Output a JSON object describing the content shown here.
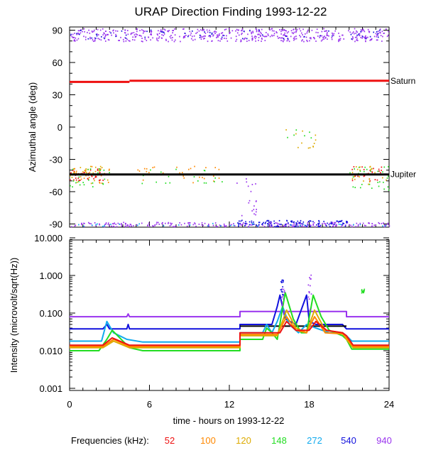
{
  "title": "URAP Direction Finding  1993-12-22",
  "footer": {
    "freq_label": "Frequencies (kHz):",
    "frequencies": [
      {
        "label": "52",
        "color": "#ee1111"
      },
      {
        "label": "100",
        "color": "#ff8800"
      },
      {
        "label": "120",
        "color": "#ddaa00"
      },
      {
        "label": "148",
        "color": "#22dd22"
      },
      {
        "label": "272",
        "color": "#11aaee"
      },
      {
        "label": "540",
        "color": "#1111dd"
      },
      {
        "label": "940",
        "color": "#9933ee"
      }
    ]
  },
  "chart_data": [
    {
      "type": "scatter",
      "ylabel": "Azimuthal angle (deg)",
      "xlim": [
        0,
        24
      ],
      "ylim": [
        -93,
        93
      ],
      "yticks": [
        "90",
        "60",
        "30",
        "0",
        "-30",
        "-60",
        "-90"
      ],
      "reference_lines": [
        {
          "name": "Saturn",
          "color": "#ee1111",
          "segments": [
            [
              0,
              4.5,
              42
            ],
            [
              4.5,
              24,
              43
            ]
          ]
        },
        {
          "name": "Jupiter",
          "color": "#000000",
          "segments": [
            [
              0,
              24,
              -44
            ]
          ]
        }
      ],
      "clusters": [
        {
          "color": "#9933ee",
          "x": [
            0,
            24
          ],
          "y": [
            80,
            92
          ],
          "count": 520
        },
        {
          "color": "#1111dd",
          "x": [
            0,
            24
          ],
          "y": [
            82,
            91
          ],
          "count": 60
        },
        {
          "color": "#9933ee",
          "x": [
            0,
            24
          ],
          "y": [
            -92,
            -88
          ],
          "count": 240
        },
        {
          "color": "#1111dd",
          "x": [
            12.5,
            21
          ],
          "y": [
            -92,
            -86
          ],
          "count": 120
        },
        {
          "color": "#11aaee",
          "x": [
            0,
            24
          ],
          "y": [
            -92,
            -89
          ],
          "count": 30
        },
        {
          "color": "#ee1111",
          "x": [
            0,
            2.5
          ],
          "y": [
            -50,
            -38
          ],
          "count": 40
        },
        {
          "color": "#ff8800",
          "x": [
            0,
            3
          ],
          "y": [
            -52,
            -36
          ],
          "count": 25
        },
        {
          "color": "#ddaa00",
          "x": [
            0,
            3
          ],
          "y": [
            -52,
            -36
          ],
          "count": 25
        },
        {
          "color": "#22dd22",
          "x": [
            0,
            3
          ],
          "y": [
            -55,
            -38
          ],
          "count": 25
        },
        {
          "color": "#ff8800",
          "x": [
            5,
            11.5
          ],
          "y": [
            -52,
            -36
          ],
          "count": 30
        },
        {
          "color": "#22dd22",
          "x": [
            5,
            11.5
          ],
          "y": [
            -52,
            -36
          ],
          "count": 20
        },
        {
          "color": "#ee1111",
          "x": [
            21,
            23.5
          ],
          "y": [
            -50,
            -36
          ],
          "count": 25
        },
        {
          "color": "#22dd22",
          "x": [
            21,
            24
          ],
          "y": [
            -58,
            -36
          ],
          "count": 30
        },
        {
          "color": "#ddaa00",
          "x": [
            21,
            24
          ],
          "y": [
            -55,
            -36
          ],
          "count": 20
        },
        {
          "color": "#9933ee",
          "x": [
            12.5,
            14
          ],
          "y": [
            -92,
            -45
          ],
          "count": 20
        },
        {
          "color": "#ddaa00",
          "x": [
            16,
            18.5
          ],
          "y": [
            -22,
            5
          ],
          "count": 12
        },
        {
          "color": "#22dd22",
          "x": [
            16,
            18.5
          ],
          "y": [
            -10,
            0
          ],
          "count": 6
        }
      ]
    },
    {
      "type": "line",
      "ylabel": "Intensity (microvolt/sqrt(Hz))",
      "xlabel": "time - hours on 1993-12-22",
      "xlim": [
        0,
        24
      ],
      "ylim": [
        0.001,
        10
      ],
      "yscale": "log",
      "xticks": [
        "0",
        "6",
        "12",
        "18",
        "24"
      ],
      "yticks": [
        "10.000",
        "1.000",
        "0.100",
        "0.010",
        "0.001"
      ],
      "series": [
        {
          "color": "#9933ee",
          "x": [
            0,
            4.3,
            4.4,
            4.5,
            12.8,
            12.8,
            20.8,
            20.8,
            24
          ],
          "y": [
            0.08,
            0.08,
            0.095,
            0.08,
            0.08,
            0.11,
            0.11,
            0.08,
            0.08
          ]
        },
        {
          "color": "#1111dd",
          "x": [
            0,
            2.5,
            2.8,
            3,
            4.3,
            4.4,
            4.5,
            12.8,
            12.8,
            15.2,
            15.6,
            15.8,
            16.2,
            17,
            17.8,
            18,
            18.5,
            19.5,
            20.5,
            20.8,
            24
          ],
          "y": [
            0.038,
            0.038,
            0.05,
            0.038,
            0.038,
            0.05,
            0.038,
            0.038,
            0.05,
            0.05,
            0.15,
            0.3,
            0.07,
            0.05,
            0.3,
            0.06,
            0.05,
            0.05,
            0.05,
            0.038,
            0.038
          ]
        },
        {
          "color": "#000000",
          "x": [
            12.8,
            20.8
          ],
          "y": [
            0.045,
            0.045
          ]
        },
        {
          "color": "#11aaee",
          "x": [
            0,
            2.4,
            2.8,
            3.3,
            4.3,
            5.5,
            12.8,
            12.8,
            14.5,
            14.8,
            15.2,
            15.6,
            16,
            16.5,
            17.2,
            17.8,
            18.5,
            19.5,
            20.5,
            20.8,
            21.2,
            24
          ],
          "y": [
            0.018,
            0.018,
            0.06,
            0.03,
            0.02,
            0.017,
            0.017,
            0.03,
            0.03,
            0.05,
            0.03,
            0.06,
            0.15,
            0.05,
            0.03,
            0.05,
            0.04,
            0.03,
            0.03,
            0.025,
            0.018,
            0.018
          ]
        },
        {
          "color": "#22dd22",
          "x": [
            0,
            2.2,
            2.8,
            3.2,
            4.5,
            5.5,
            12.8,
            12.8,
            14.5,
            14.8,
            15.2,
            15.6,
            16.2,
            16.8,
            17.4,
            17.8,
            18.3,
            18.9,
            19.5,
            20.5,
            20.8,
            21.2,
            24
          ],
          "y": [
            0.01,
            0.01,
            0.02,
            0.035,
            0.012,
            0.01,
            0.01,
            0.02,
            0.02,
            0.04,
            0.03,
            0.02,
            0.35,
            0.07,
            0.03,
            0.03,
            0.3,
            0.08,
            0.035,
            0.025,
            0.02,
            0.011,
            0.011
          ]
        },
        {
          "color": "#ddaa00",
          "x": [
            0,
            2.5,
            3.3,
            4.5,
            12.8,
            12.8,
            15.6,
            16.3,
            17,
            17.8,
            18.4,
            19.2,
            20.5,
            20.8,
            21.3,
            24
          ],
          "y": [
            0.012,
            0.012,
            0.018,
            0.012,
            0.012,
            0.025,
            0.025,
            0.12,
            0.04,
            0.03,
            0.12,
            0.035,
            0.03,
            0.02,
            0.012,
            0.012
          ]
        },
        {
          "color": "#ff8800",
          "x": [
            0,
            2.5,
            3.3,
            4.5,
            12.8,
            12.8,
            15.6,
            16.3,
            17,
            17.8,
            18.4,
            19.2,
            20.5,
            20.8,
            21.3,
            24
          ],
          "y": [
            0.013,
            0.013,
            0.02,
            0.013,
            0.013,
            0.027,
            0.027,
            0.08,
            0.035,
            0.03,
            0.08,
            0.03,
            0.028,
            0.022,
            0.013,
            0.013
          ]
        },
        {
          "color": "#ee1111",
          "x": [
            0,
            2.5,
            3.2,
            4.5,
            12.8,
            12.8,
            15.8,
            16.3,
            17,
            18,
            18.5,
            19.3,
            20.5,
            20.8,
            21.3,
            24
          ],
          "y": [
            0.014,
            0.014,
            0.022,
            0.014,
            0.014,
            0.03,
            0.03,
            0.06,
            0.035,
            0.035,
            0.06,
            0.035,
            0.03,
            0.025,
            0.014,
            0.014
          ]
        }
      ],
      "spikes": [
        {
          "color": "#9933ee",
          "x": 16,
          "y": [
            0.1,
            0.5
          ]
        },
        {
          "color": "#9933ee",
          "x": 18,
          "y": [
            0.1,
            1.4
          ]
        },
        {
          "color": "#1111dd",
          "x": 15.9,
          "y": [
            0.3,
            0.8
          ]
        },
        {
          "color": "#22dd22",
          "x": 22,
          "y": [
            0.35,
            0.45
          ]
        }
      ]
    }
  ]
}
